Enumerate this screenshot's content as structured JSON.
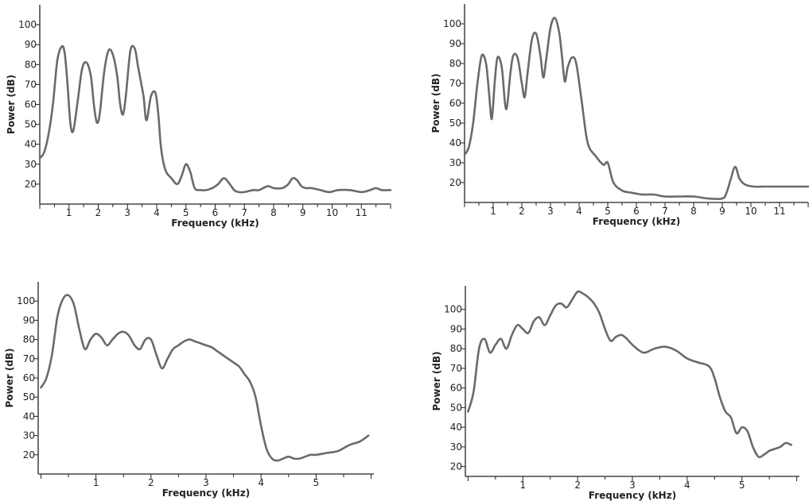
{
  "chart_data": [
    {
      "type": "line",
      "xlabel": "Frequency (kHz)",
      "ylabel": "Power (dB)",
      "xlim": [
        0,
        12
      ],
      "ylim": [
        10,
        110
      ],
      "xticks": [
        1,
        2,
        3,
        4,
        5,
        6,
        7,
        8,
        9,
        10,
        11
      ],
      "yticks": [
        20,
        30,
        40,
        50,
        60,
        70,
        80,
        90,
        100
      ],
      "series": [
        {
          "x": [
            0,
            0.15,
            0.3,
            0.45,
            0.6,
            0.75,
            0.85,
            0.95,
            1.05,
            1.15,
            1.3,
            1.45,
            1.6,
            1.75,
            1.85,
            1.95,
            2.05,
            2.2,
            2.35,
            2.5,
            2.65,
            2.75,
            2.85,
            2.95,
            3.1,
            3.25,
            3.35,
            3.45,
            3.55,
            3.65,
            3.8,
            3.95,
            4.05,
            4.15,
            4.3,
            4.5,
            4.7,
            4.85,
            5.0,
            5.15,
            5.3,
            5.5,
            5.7,
            5.9,
            6.1,
            6.3,
            6.5,
            6.65,
            6.8,
            7.0,
            7.3,
            7.5,
            7.8,
            8.0,
            8.3,
            8.5,
            8.65,
            8.8,
            8.95,
            9.1,
            9.3,
            9.6,
            9.9,
            10.2,
            10.6,
            11.0,
            11.3,
            11.5,
            11.7,
            12.0
          ],
          "y": [
            33,
            36,
            45,
            60,
            82,
            89,
            86,
            70,
            50,
            47,
            62,
            78,
            81,
            74,
            60,
            51,
            55,
            76,
            87,
            85,
            74,
            60,
            55,
            65,
            87,
            88,
            80,
            72,
            64,
            52,
            64,
            66,
            56,
            38,
            27,
            23,
            20,
            24,
            30,
            26,
            18,
            17,
            17,
            18,
            20,
            23,
            20,
            17,
            16,
            16,
            17,
            17,
            19,
            18,
            18,
            20,
            23,
            22,
            19,
            18,
            18,
            17,
            16,
            17,
            17,
            16,
            17,
            18,
            17,
            17
          ]
        }
      ]
    },
    {
      "type": "line",
      "xlabel": "Frequency (kHz)",
      "ylabel": "Power (dB)",
      "xlim": [
        0,
        12
      ],
      "ylim": [
        10,
        110
      ],
      "xticks": [
        1,
        2,
        3,
        4,
        5,
        6,
        7,
        8,
        9,
        10,
        11
      ],
      "yticks": [
        20,
        30,
        40,
        50,
        60,
        70,
        80,
        90,
        100
      ],
      "series": [
        {
          "x": [
            0,
            0.15,
            0.3,
            0.45,
            0.6,
            0.75,
            0.85,
            0.95,
            1.05,
            1.15,
            1.3,
            1.45,
            1.6,
            1.7,
            1.85,
            2.0,
            2.1,
            2.2,
            2.35,
            2.5,
            2.65,
            2.75,
            2.85,
            3.0,
            3.15,
            3.3,
            3.4,
            3.5,
            3.6,
            3.75,
            3.9,
            4.1,
            4.3,
            4.6,
            4.85,
            5.0,
            5.2,
            5.5,
            5.8,
            6.2,
            6.6,
            7.0,
            7.5,
            8.0,
            8.5,
            9.0,
            9.15,
            9.3,
            9.45,
            9.6,
            9.8,
            10.1,
            10.5,
            11.0,
            11.5,
            12.0
          ],
          "y": [
            34,
            38,
            50,
            70,
            84,
            80,
            66,
            52,
            70,
            83,
            78,
            57,
            75,
            84,
            83,
            70,
            63,
            75,
            92,
            95,
            84,
            73,
            82,
            98,
            103,
            96,
            84,
            71,
            78,
            83,
            80,
            60,
            40,
            33,
            29,
            30,
            20,
            16,
            15,
            14,
            14,
            13,
            13,
            13,
            12,
            12,
            15,
            22,
            28,
            22,
            19,
            18,
            18,
            18,
            18,
            18
          ]
        }
      ]
    },
    {
      "type": "line",
      "xlabel": "Frequency (kHz)",
      "ylabel": "Power (dB)",
      "xlim": [
        -0.05,
        6.05
      ],
      "ylim": [
        10,
        110
      ],
      "xticks": [
        1,
        2,
        3,
        4,
        5
      ],
      "yticks": [
        20,
        30,
        40,
        50,
        60,
        70,
        80,
        90,
        100
      ],
      "series": [
        {
          "x": [
            0,
            0.1,
            0.2,
            0.3,
            0.4,
            0.5,
            0.6,
            0.7,
            0.8,
            0.9,
            1.0,
            1.1,
            1.2,
            1.3,
            1.4,
            1.5,
            1.6,
            1.7,
            1.8,
            1.9,
            2.0,
            2.1,
            2.2,
            2.3,
            2.4,
            2.5,
            2.6,
            2.7,
            2.8,
            2.9,
            3.0,
            3.1,
            3.2,
            3.3,
            3.4,
            3.5,
            3.6,
            3.7,
            3.8,
            3.9,
            4.0,
            4.1,
            4.2,
            4.3,
            4.4,
            4.5,
            4.6,
            4.7,
            4.8,
            4.9,
            5.0,
            5.2,
            5.4,
            5.6,
            5.8,
            5.95
          ],
          "y": [
            55,
            60,
            72,
            92,
            101,
            103,
            98,
            85,
            75,
            80,
            83,
            81,
            77,
            80,
            83,
            84,
            82,
            77,
            75,
            80,
            80,
            72,
            65,
            70,
            75,
            77,
            79,
            80,
            79,
            78,
            77,
            76,
            74,
            72,
            70,
            68,
            66,
            62,
            58,
            50,
            35,
            23,
            18,
            17,
            18,
            19,
            18,
            18,
            19,
            20,
            20,
            21,
            22,
            25,
            27,
            30
          ]
        }
      ]
    },
    {
      "type": "line",
      "xlabel": "Frequency (kHz)",
      "ylabel": "Power (dB)",
      "xlim": [
        -0.05,
        6.05
      ],
      "ylim": [
        15,
        112
      ],
      "xticks": [
        1,
        2,
        3,
        4,
        5
      ],
      "yticks": [
        20,
        30,
        40,
        50,
        60,
        70,
        80,
        90,
        100
      ],
      "series": [
        {
          "x": [
            0,
            0.1,
            0.2,
            0.3,
            0.4,
            0.5,
            0.6,
            0.7,
            0.8,
            0.9,
            1.0,
            1.1,
            1.2,
            1.3,
            1.4,
            1.5,
            1.6,
            1.7,
            1.8,
            1.9,
            2.0,
            2.1,
            2.2,
            2.3,
            2.4,
            2.5,
            2.6,
            2.7,
            2.8,
            2.9,
            3.0,
            3.2,
            3.4,
            3.6,
            3.8,
            4.0,
            4.2,
            4.4,
            4.5,
            4.6,
            4.7,
            4.8,
            4.9,
            5.0,
            5.1,
            5.2,
            5.3,
            5.4,
            5.5,
            5.6,
            5.7,
            5.8,
            5.9
          ],
          "y": [
            48,
            58,
            80,
            85,
            78,
            82,
            85,
            80,
            87,
            92,
            90,
            88,
            94,
            96,
            92,
            97,
            102,
            103,
            101,
            105,
            109,
            108,
            106,
            103,
            98,
            90,
            84,
            86,
            87,
            85,
            82,
            78,
            80,
            81,
            79,
            75,
            73,
            71,
            65,
            55,
            48,
            45,
            37,
            40,
            38,
            30,
            25,
            26,
            28,
            29,
            30,
            32,
            31
          ]
        }
      ]
    }
  ]
}
